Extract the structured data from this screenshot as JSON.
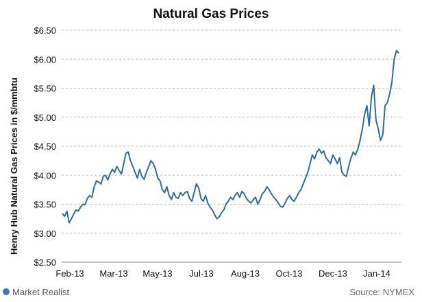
{
  "chart_data": {
    "type": "line",
    "title": "Natural Gas Prices",
    "ylabel": "Henry Hub Natural Gas Prices in $/mmbtu",
    "xlabel": "",
    "ylim": [
      2.5,
      6.5
    ],
    "y_ticks": [
      2.5,
      3.0,
      3.5,
      4.0,
      4.5,
      5.0,
      5.5,
      6.0,
      6.5
    ],
    "y_tick_labels": [
      "$2.50",
      "$3.00",
      "$3.50",
      "$4.00",
      "$4.50",
      "$5.00",
      "$5.50",
      "$6.00",
      "$6.50"
    ],
    "x_tick_labels": [
      "Feb-13",
      "Mar-13",
      "May-13",
      "Jul-13",
      "Aug-13",
      "Oct-13",
      "Dec-13",
      "Jan-14"
    ],
    "grid": true,
    "legend": "none",
    "line_color": "#2a6da3",
    "series": [
      {
        "values": [
          3.34,
          3.29,
          3.38,
          3.18,
          3.25,
          3.33,
          3.4,
          3.38,
          3.45,
          3.5,
          3.49,
          3.6,
          3.65,
          3.62,
          3.8,
          3.9,
          3.88,
          3.85,
          3.98,
          4.0,
          3.92,
          4.02,
          4.1,
          4.05,
          4.15,
          4.08,
          4.02,
          4.2,
          4.38,
          4.4,
          4.25,
          4.15,
          4.05,
          3.95,
          4.1,
          3.98,
          3.93,
          4.05,
          4.15,
          4.25,
          4.2,
          4.1,
          3.95,
          3.9,
          3.75,
          3.7,
          3.8,
          3.65,
          3.58,
          3.7,
          3.62,
          3.6,
          3.7,
          3.65,
          3.7,
          3.72,
          3.6,
          3.55,
          3.7,
          3.85,
          3.78,
          3.6,
          3.55,
          3.65,
          3.52,
          3.45,
          3.4,
          3.32,
          3.25,
          3.28,
          3.35,
          3.4,
          3.5,
          3.55,
          3.62,
          3.58,
          3.65,
          3.7,
          3.62,
          3.72,
          3.68,
          3.6,
          3.55,
          3.52,
          3.58,
          3.62,
          3.5,
          3.58,
          3.68,
          3.72,
          3.8,
          3.75,
          3.68,
          3.62,
          3.58,
          3.52,
          3.46,
          3.45,
          3.52,
          3.6,
          3.65,
          3.58,
          3.55,
          3.62,
          3.7,
          3.75,
          3.85,
          3.95,
          4.05,
          4.2,
          4.35,
          4.28,
          4.4,
          4.45,
          4.38,
          4.42,
          4.3,
          4.25,
          4.2,
          4.35,
          4.28,
          4.2,
          4.3,
          4.05,
          4.0,
          3.98,
          4.15,
          4.3,
          4.4,
          4.35,
          4.45,
          4.6,
          4.8,
          5.05,
          5.2,
          4.85,
          5.35,
          5.55,
          4.95,
          4.8,
          4.6,
          4.7,
          5.2,
          5.25,
          5.4,
          5.6,
          6.0,
          6.15,
          6.1
        ]
      }
    ],
    "source": "Source: NYMEX"
  },
  "branding": {
    "logo_text": "Market Realist"
  }
}
